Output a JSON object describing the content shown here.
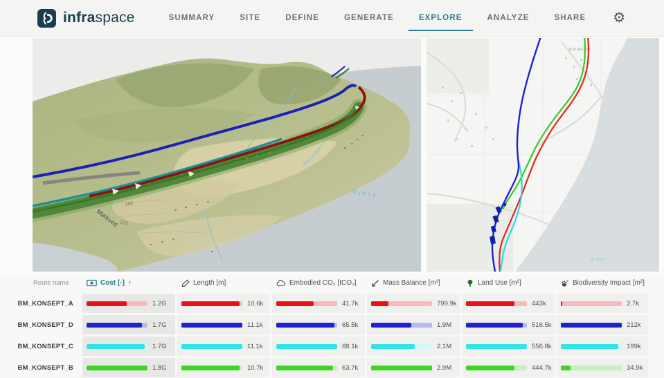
{
  "app": {
    "brand_bold": "infra",
    "brand_light": "space"
  },
  "nav": {
    "items": [
      {
        "label": "SUMMARY",
        "active": false
      },
      {
        "label": "SITE",
        "active": false
      },
      {
        "label": "DEFINE",
        "active": false
      },
      {
        "label": "GENERATE",
        "active": false
      },
      {
        "label": "EXPLORE",
        "active": true
      },
      {
        "label": "ANALYZE",
        "active": false
      },
      {
        "label": "SHARE",
        "active": false
      }
    ],
    "settings_icon": "gear-icon"
  },
  "colors": {
    "accent_teal": "#2a7d8e",
    "brand": "#1b3e4d",
    "route_a_red": "#e8101b",
    "route_d_blue": "#2121d2",
    "route_c_cyan": "#2ee6e6",
    "route_b_green": "#3bd71e"
  },
  "map3d": {
    "labels": {
      "road_label": "Mørkved",
      "contour_150": "150",
      "contour_125": "125",
      "water_label": "Mjøsa"
    }
  },
  "map2d": {
    "labels": {
      "place_label": "KOLBERG",
      "water_label": "Mjøsa"
    }
  },
  "table": {
    "route_name_header": "Route name",
    "sort_arrow": "↑",
    "columns": [
      {
        "label": "Cost [-]",
        "icon": "money-icon",
        "sorted": true
      },
      {
        "label": "Length [m]",
        "icon": "pencil-icon",
        "sorted": false
      },
      {
        "label": "Embodied CO₂ [tCO₂]",
        "icon": "cloud-icon",
        "sorted": false
      },
      {
        "label": "Mass Balance [m³]",
        "icon": "mass-arrows-icon",
        "sorted": false
      },
      {
        "label": "Land Use [m²]",
        "icon": "tree-icon",
        "sorted": false
      },
      {
        "label": "Biodiversity Impact [m²]",
        "icon": "animal-icon",
        "sorted": false
      }
    ],
    "rows": [
      {
        "name": "BM_KONSEPT_A",
        "color": "#e8101b",
        "track": "#f7b9bd",
        "cells": [
          {
            "value": "1.2G",
            "frac": 0.66
          },
          {
            "value": "10.6k",
            "frac": 0.95
          },
          {
            "value": "41.7k",
            "frac": 0.61
          },
          {
            "value": "799.9k",
            "frac": 0.28
          },
          {
            "value": "443k",
            "frac": 0.8
          },
          {
            "value": "2.7k",
            "frac": 0.02
          }
        ]
      },
      {
        "name": "BM_KONSEPT_D",
        "color": "#2121d2",
        "track": "#b9b9ef",
        "cells": [
          {
            "value": "1.7G",
            "frac": 0.91
          },
          {
            "value": "11.1k",
            "frac": 1.0
          },
          {
            "value": "65.5k",
            "frac": 0.96
          },
          {
            "value": "1.9M",
            "frac": 0.66
          },
          {
            "value": "516.5k",
            "frac": 0.93
          },
          {
            "value": "212k",
            "frac": 1.0
          }
        ]
      },
      {
        "name": "BM_KONSEPT_C",
        "color": "#2ee6e6",
        "track": "#d5f8f8",
        "cells": [
          {
            "value": "1.7G",
            "frac": 0.96
          },
          {
            "value": "11.1k",
            "frac": 1.0
          },
          {
            "value": "68.1k",
            "frac": 1.0
          },
          {
            "value": "2.1M",
            "frac": 0.72
          },
          {
            "value": "556.8k",
            "frac": 1.0
          },
          {
            "value": "199k",
            "frac": 0.94
          }
        ]
      },
      {
        "name": "BM_KONSEPT_B",
        "color": "#3bd71e",
        "track": "#c6f0bd",
        "cells": [
          {
            "value": "1.8G",
            "frac": 1.0
          },
          {
            "value": "10.7k",
            "frac": 0.96
          },
          {
            "value": "63.7k",
            "frac": 0.93
          },
          {
            "value": "2.9M",
            "frac": 1.0
          },
          {
            "value": "444.7k",
            "frac": 0.8
          },
          {
            "value": "34.9k",
            "frac": 0.16
          }
        ]
      }
    ]
  }
}
